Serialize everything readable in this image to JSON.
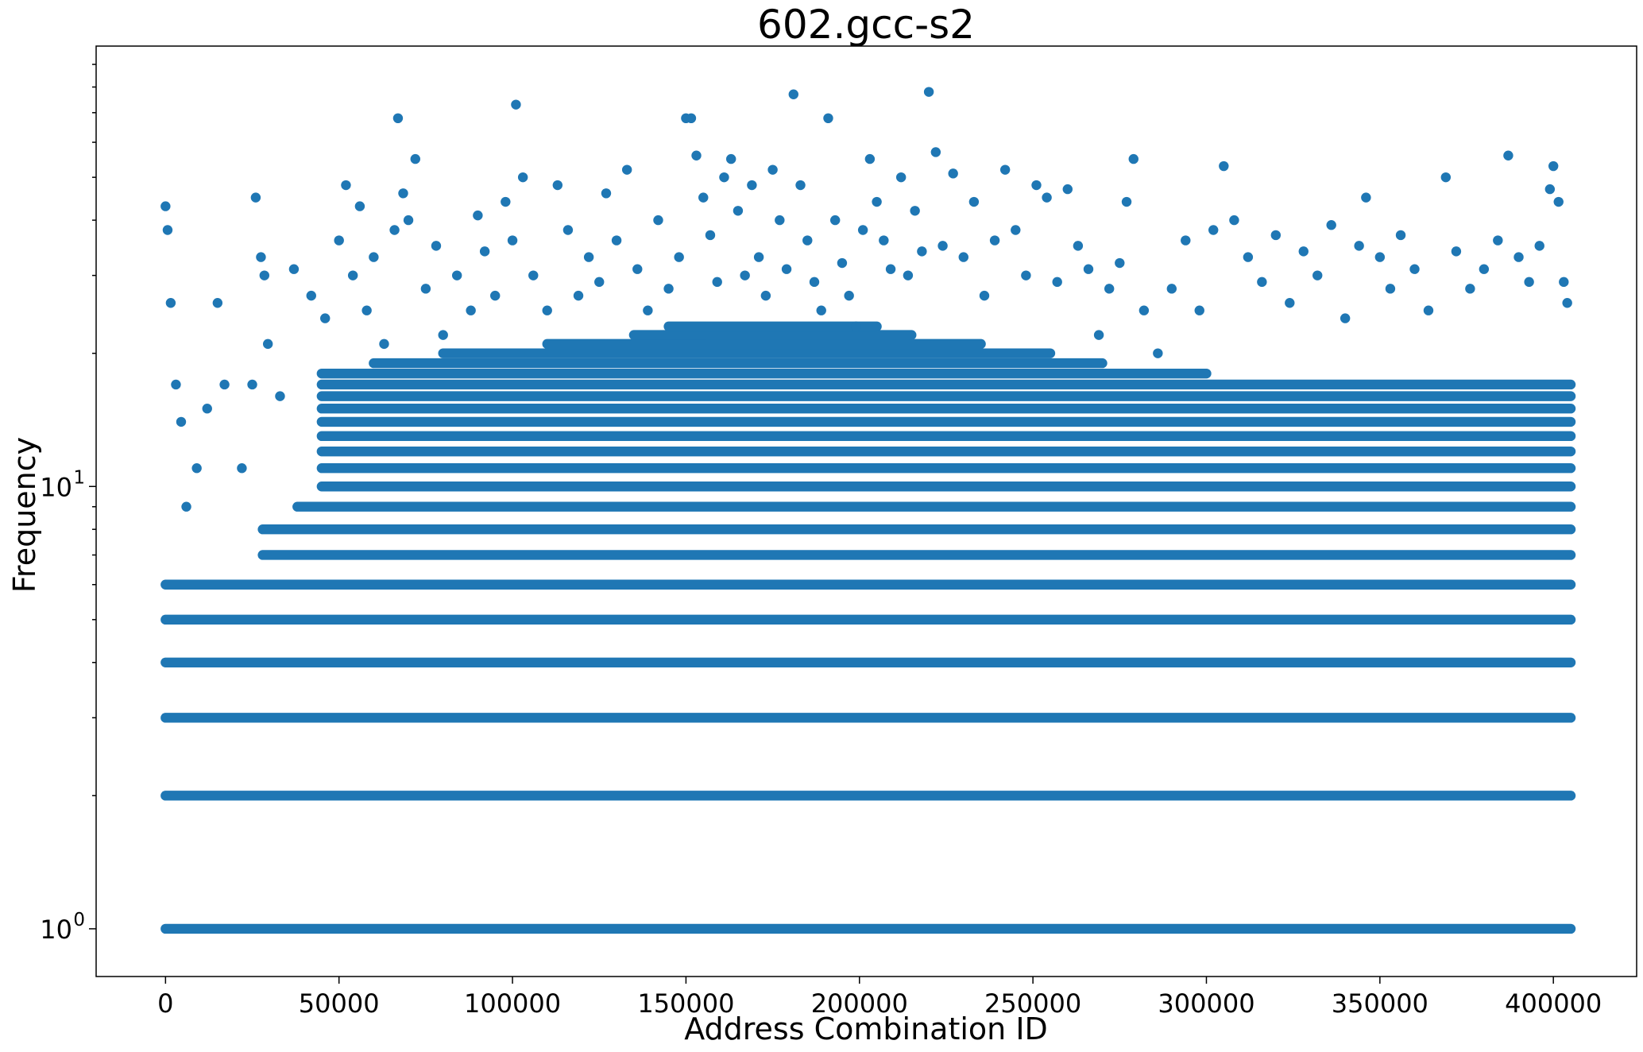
{
  "chart_data": {
    "type": "scatter",
    "title": "602.gcc-s2",
    "xlabel": "Address Combination ID",
    "ylabel": "Frequency",
    "x_range": [
      -20000,
      424000
    ],
    "y_scale": "log",
    "y_range": [
      0.78,
      99
    ],
    "grid": false,
    "legend": "none",
    "marker_color": "#1f77b4",
    "xticks": [
      {
        "value": 0,
        "label": "0"
      },
      {
        "value": 50000,
        "label": "50000"
      },
      {
        "value": 100000,
        "label": "100000"
      },
      {
        "value": 150000,
        "label": "150000"
      },
      {
        "value": 200000,
        "label": "200000"
      },
      {
        "value": 250000,
        "label": "250000"
      },
      {
        "value": 300000,
        "label": "300000"
      },
      {
        "value": 350000,
        "label": "350000"
      },
      {
        "value": 400000,
        "label": "400000"
      }
    ],
    "yticks_major": [
      {
        "value": 1,
        "base": "10",
        "exp": "0"
      },
      {
        "value": 10,
        "base": "10",
        "exp": "1"
      }
    ],
    "yticks_minor": [
      2,
      3,
      4,
      5,
      6,
      7,
      8,
      9,
      20,
      30,
      40,
      50,
      60,
      70,
      80,
      90
    ],
    "bands": [
      {
        "y": 1,
        "x_start": 0,
        "x_end": 405000
      },
      {
        "y": 2,
        "x_start": 0,
        "x_end": 405000
      },
      {
        "y": 3,
        "x_start": 0,
        "x_end": 405000
      },
      {
        "y": 4,
        "x_start": 0,
        "x_end": 405000
      },
      {
        "y": 5,
        "x_start": 0,
        "x_end": 405000
      },
      {
        "y": 6,
        "x_start": 0,
        "x_end": 405000
      },
      {
        "y": 7,
        "x_start": 28000,
        "x_end": 405000
      },
      {
        "y": 8,
        "x_start": 28000,
        "x_end": 405000
      },
      {
        "y": 9,
        "x_start": 38000,
        "x_end": 405000
      },
      {
        "y": 10,
        "x_start": 45000,
        "x_end": 405000
      },
      {
        "y": 11,
        "x_start": 45000,
        "x_end": 405000
      },
      {
        "y": 12,
        "x_start": 45000,
        "x_end": 405000
      },
      {
        "y": 13,
        "x_start": 45000,
        "x_end": 405000
      },
      {
        "y": 14,
        "x_start": 45000,
        "x_end": 405000
      },
      {
        "y": 15,
        "x_start": 45000,
        "x_end": 405000
      },
      {
        "y": 16,
        "x_start": 45000,
        "x_end": 405000
      },
      {
        "y": 17,
        "x_start": 45000,
        "x_end": 405000
      },
      {
        "y": 18,
        "x_start": 45000,
        "x_end": 300000
      },
      {
        "y": 19,
        "x_start": 60000,
        "x_end": 270000
      },
      {
        "y": 20,
        "x_start": 80000,
        "x_end": 255000
      },
      {
        "y": 21,
        "x_start": 110000,
        "x_end": 235000
      },
      {
        "y": 22,
        "x_start": 135000,
        "x_end": 215000
      },
      {
        "y": 23,
        "x_start": 145000,
        "x_end": 205000
      }
    ],
    "points": [
      [
        0,
        43
      ],
      [
        600,
        38
      ],
      [
        1500,
        26
      ],
      [
        3000,
        17
      ],
      [
        4500,
        14
      ],
      [
        6000,
        9
      ],
      [
        9000,
        11
      ],
      [
        12000,
        15
      ],
      [
        15000,
        26
      ],
      [
        17000,
        17
      ],
      [
        22000,
        11
      ],
      [
        25000,
        17
      ],
      [
        26000,
        45
      ],
      [
        27500,
        33
      ],
      [
        28500,
        30
      ],
      [
        29500,
        21
      ],
      [
        33000,
        16
      ],
      [
        37000,
        31
      ],
      [
        42000,
        27
      ],
      [
        46000,
        24
      ],
      [
        50000,
        36
      ],
      [
        52000,
        48
      ],
      [
        54000,
        30
      ],
      [
        56000,
        43
      ],
      [
        58000,
        25
      ],
      [
        60000,
        33
      ],
      [
        63000,
        21
      ],
      [
        66000,
        38
      ],
      [
        67000,
        68
      ],
      [
        68500,
        46
      ],
      [
        70000,
        40
      ],
      [
        72000,
        55
      ],
      [
        75000,
        28
      ],
      [
        78000,
        35
      ],
      [
        80000,
        22
      ],
      [
        84000,
        30
      ],
      [
        88000,
        25
      ],
      [
        90000,
        41
      ],
      [
        92000,
        34
      ],
      [
        95000,
        27
      ],
      [
        98000,
        44
      ],
      [
        100000,
        36
      ],
      [
        101000,
        73
      ],
      [
        103000,
        50
      ],
      [
        106000,
        30
      ],
      [
        110000,
        25
      ],
      [
        113000,
        48
      ],
      [
        116000,
        38
      ],
      [
        119000,
        27
      ],
      [
        122000,
        33
      ],
      [
        125000,
        29
      ],
      [
        127000,
        46
      ],
      [
        130000,
        36
      ],
      [
        133000,
        52
      ],
      [
        136000,
        31
      ],
      [
        139000,
        25
      ],
      [
        142000,
        40
      ],
      [
        145000,
        28
      ],
      [
        148000,
        33
      ],
      [
        150000,
        68
      ],
      [
        151500,
        68
      ],
      [
        153000,
        56
      ],
      [
        155000,
        45
      ],
      [
        157000,
        37
      ],
      [
        159000,
        29
      ],
      [
        161000,
        50
      ],
      [
        163000,
        55
      ],
      [
        165000,
        42
      ],
      [
        167000,
        30
      ],
      [
        169000,
        48
      ],
      [
        171000,
        33
      ],
      [
        173000,
        27
      ],
      [
        175000,
        52
      ],
      [
        177000,
        40
      ],
      [
        179000,
        31
      ],
      [
        181000,
        77
      ],
      [
        183000,
        48
      ],
      [
        185000,
        36
      ],
      [
        187000,
        29
      ],
      [
        189000,
        25
      ],
      [
        191000,
        68
      ],
      [
        193000,
        40
      ],
      [
        195000,
        32
      ],
      [
        197000,
        27
      ],
      [
        199000,
        23
      ],
      [
        201000,
        38
      ],
      [
        203000,
        55
      ],
      [
        205000,
        44
      ],
      [
        207000,
        36
      ],
      [
        209000,
        31
      ],
      [
        212000,
        50
      ],
      [
        214000,
        30
      ],
      [
        216000,
        42
      ],
      [
        218000,
        34
      ],
      [
        220000,
        78
      ],
      [
        222000,
        57
      ],
      [
        224000,
        35
      ],
      [
        227000,
        51
      ],
      [
        230000,
        33
      ],
      [
        233000,
        44
      ],
      [
        236000,
        27
      ],
      [
        239000,
        36
      ],
      [
        242000,
        52
      ],
      [
        245000,
        38
      ],
      [
        248000,
        30
      ],
      [
        251000,
        48
      ],
      [
        254000,
        45
      ],
      [
        257000,
        29
      ],
      [
        260000,
        47
      ],
      [
        263000,
        35
      ],
      [
        266000,
        31
      ],
      [
        269000,
        22
      ],
      [
        272000,
        28
      ],
      [
        275000,
        32
      ],
      [
        277000,
        44
      ],
      [
        279000,
        55
      ],
      [
        282000,
        25
      ],
      [
        286000,
        20
      ],
      [
        290000,
        28
      ],
      [
        294000,
        36
      ],
      [
        298000,
        25
      ],
      [
        302000,
        38
      ],
      [
        305000,
        53
      ],
      [
        308000,
        40
      ],
      [
        312000,
        33
      ],
      [
        316000,
        29
      ],
      [
        320000,
        37
      ],
      [
        324000,
        26
      ],
      [
        328000,
        34
      ],
      [
        332000,
        30
      ],
      [
        336000,
        39
      ],
      [
        340000,
        24
      ],
      [
        344000,
        35
      ],
      [
        346000,
        45
      ],
      [
        350000,
        33
      ],
      [
        353000,
        28
      ],
      [
        356000,
        37
      ],
      [
        360000,
        31
      ],
      [
        364000,
        25
      ],
      [
        369000,
        50
      ],
      [
        372000,
        34
      ],
      [
        376000,
        28
      ],
      [
        380000,
        31
      ],
      [
        384000,
        36
      ],
      [
        387000,
        56
      ],
      [
        390000,
        33
      ],
      [
        393000,
        29
      ],
      [
        396000,
        35
      ],
      [
        399000,
        47
      ],
      [
        400000,
        53
      ],
      [
        401500,
        44
      ],
      [
        403000,
        29
      ],
      [
        404000,
        26
      ]
    ]
  }
}
